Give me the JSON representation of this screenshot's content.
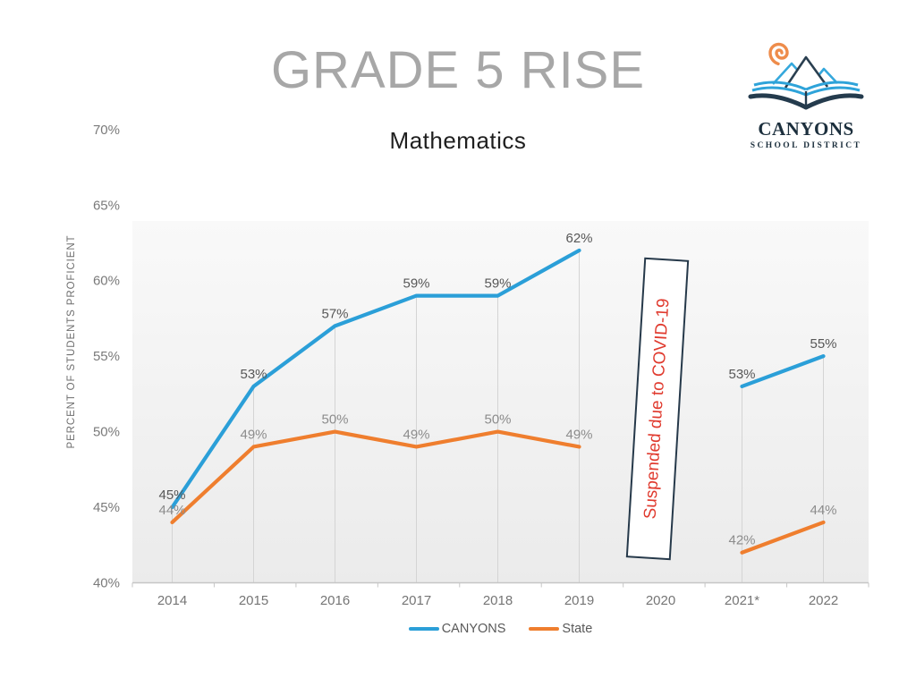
{
  "header": {
    "title": "GRADE 5 RISE"
  },
  "logo": {
    "name": "CANYONS",
    "subtitle": "SCHOOL DISTRICT"
  },
  "chart_data": {
    "type": "line",
    "title": "Mathematics",
    "ylabel": "PERCENT OF STUDENTS PROFICIENT",
    "categories": [
      "2014",
      "2015",
      "2016",
      "2017",
      "2018",
      "2019",
      "2020",
      "2021*",
      "2022"
    ],
    "series": [
      {
        "name": "CANYONS",
        "color": "#2b9fd8",
        "label_color": "#575757",
        "values": [
          45,
          53,
          57,
          59,
          59,
          62,
          null,
          53,
          55
        ]
      },
      {
        "name": "State",
        "color": "#ef7e2e",
        "label_color": "#8c8c8c",
        "values": [
          44,
          49,
          50,
          49,
          50,
          49,
          null,
          42,
          44
        ]
      }
    ],
    "ylim": [
      40,
      70
    ],
    "ytick_step": 5,
    "ytick_suffix": "%",
    "grid": "vertical-drop-lines",
    "legend_position": "bottom",
    "annotation": {
      "text": "Suspended due to COVID-19",
      "category": "2020",
      "color": "#e03a2e"
    }
  }
}
